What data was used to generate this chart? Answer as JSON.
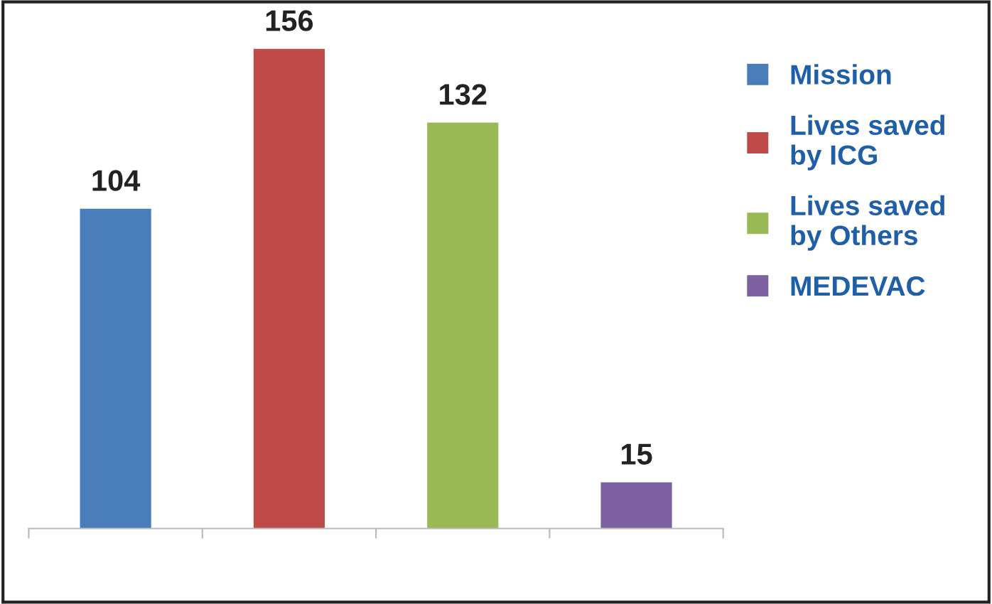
{
  "chart_data": {
    "type": "bar",
    "categories": [
      null,
      null,
      null,
      null
    ],
    "series": [
      {
        "name": "Mission",
        "color": "#4a7ebb",
        "values": [
          104,
          null,
          null,
          null
        ]
      },
      {
        "name": "Lives saved\nby ICG",
        "color": "#be4b48",
        "values": [
          null,
          156,
          null,
          null
        ]
      },
      {
        "name": "Lives saved\nby Others",
        "color": "#98b954",
        "values": [
          null,
          null,
          132,
          null
        ]
      },
      {
        "name": "MEDEVAC",
        "color": "#7d60a0",
        "values": [
          null,
          null,
          null,
          15
        ]
      }
    ],
    "stacked": true,
    "data_labels": true,
    "legend": "right",
    "grid": false
  }
}
